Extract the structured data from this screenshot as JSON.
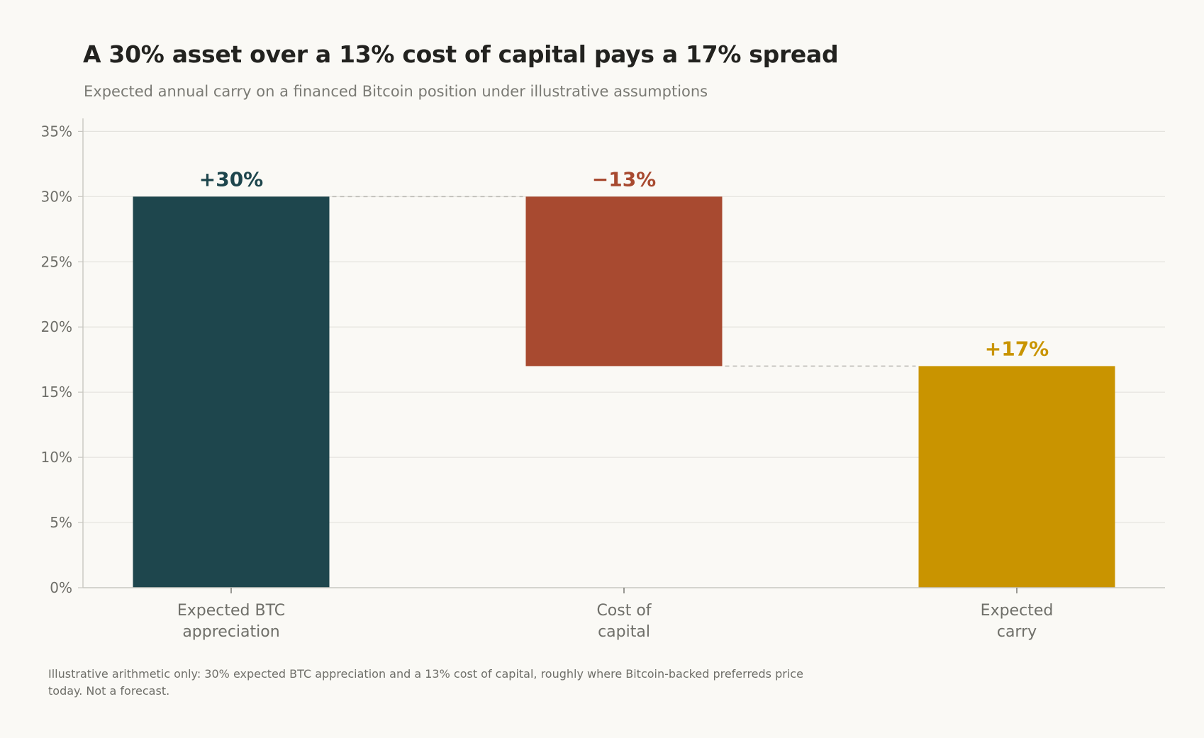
{
  "header": {
    "title": "A 30% asset over a 13% cost of capital pays a 17% spread",
    "subtitle": "Expected annual carry on a financed Bitcoin position under illustrative assumptions"
  },
  "footnote": "Illustrative arithmetic only: 30% expected BTC appreciation and a 13% cost of capital, roughly where Bitcoin-backed preferreds price today. Not a forecast.",
  "colors": {
    "background": "#faf9f5",
    "appreciation": "#1e464d",
    "cost": "#a84a30",
    "carry": "#c99400",
    "grid": "#e4e3de",
    "axis": "#c8c7c1",
    "tick_text": "#6f6f69",
    "connector": "#b9b8b2"
  },
  "chart_data": {
    "type": "waterfall",
    "title": "A 30% asset over a 13% cost of capital pays a 17% spread",
    "subtitle": "Expected annual carry on a financed Bitcoin position under illustrative assumptions",
    "categories": [
      [
        "Expected BTC",
        "appreciation"
      ],
      [
        "Cost of",
        "capital"
      ],
      [
        "Expected",
        "carry"
      ]
    ],
    "bars": [
      {
        "start": 0,
        "end": 30,
        "label": "+30%",
        "color_key": "appreciation"
      },
      {
        "start": 30,
        "end": 17,
        "label": "−13%",
        "color_key": "cost"
      },
      {
        "start": 0,
        "end": 17,
        "label": "+17%",
        "color_key": "carry"
      }
    ],
    "connectors": [
      {
        "from": 0,
        "to": 1,
        "y": 30
      },
      {
        "from": 1,
        "to": 2,
        "y": 17
      }
    ],
    "ylim": [
      0,
      36
    ],
    "yticks": [
      0,
      5,
      10,
      15,
      20,
      25,
      30,
      35
    ],
    "ytick_suffix": "%",
    "grid": true,
    "legend": "none"
  }
}
